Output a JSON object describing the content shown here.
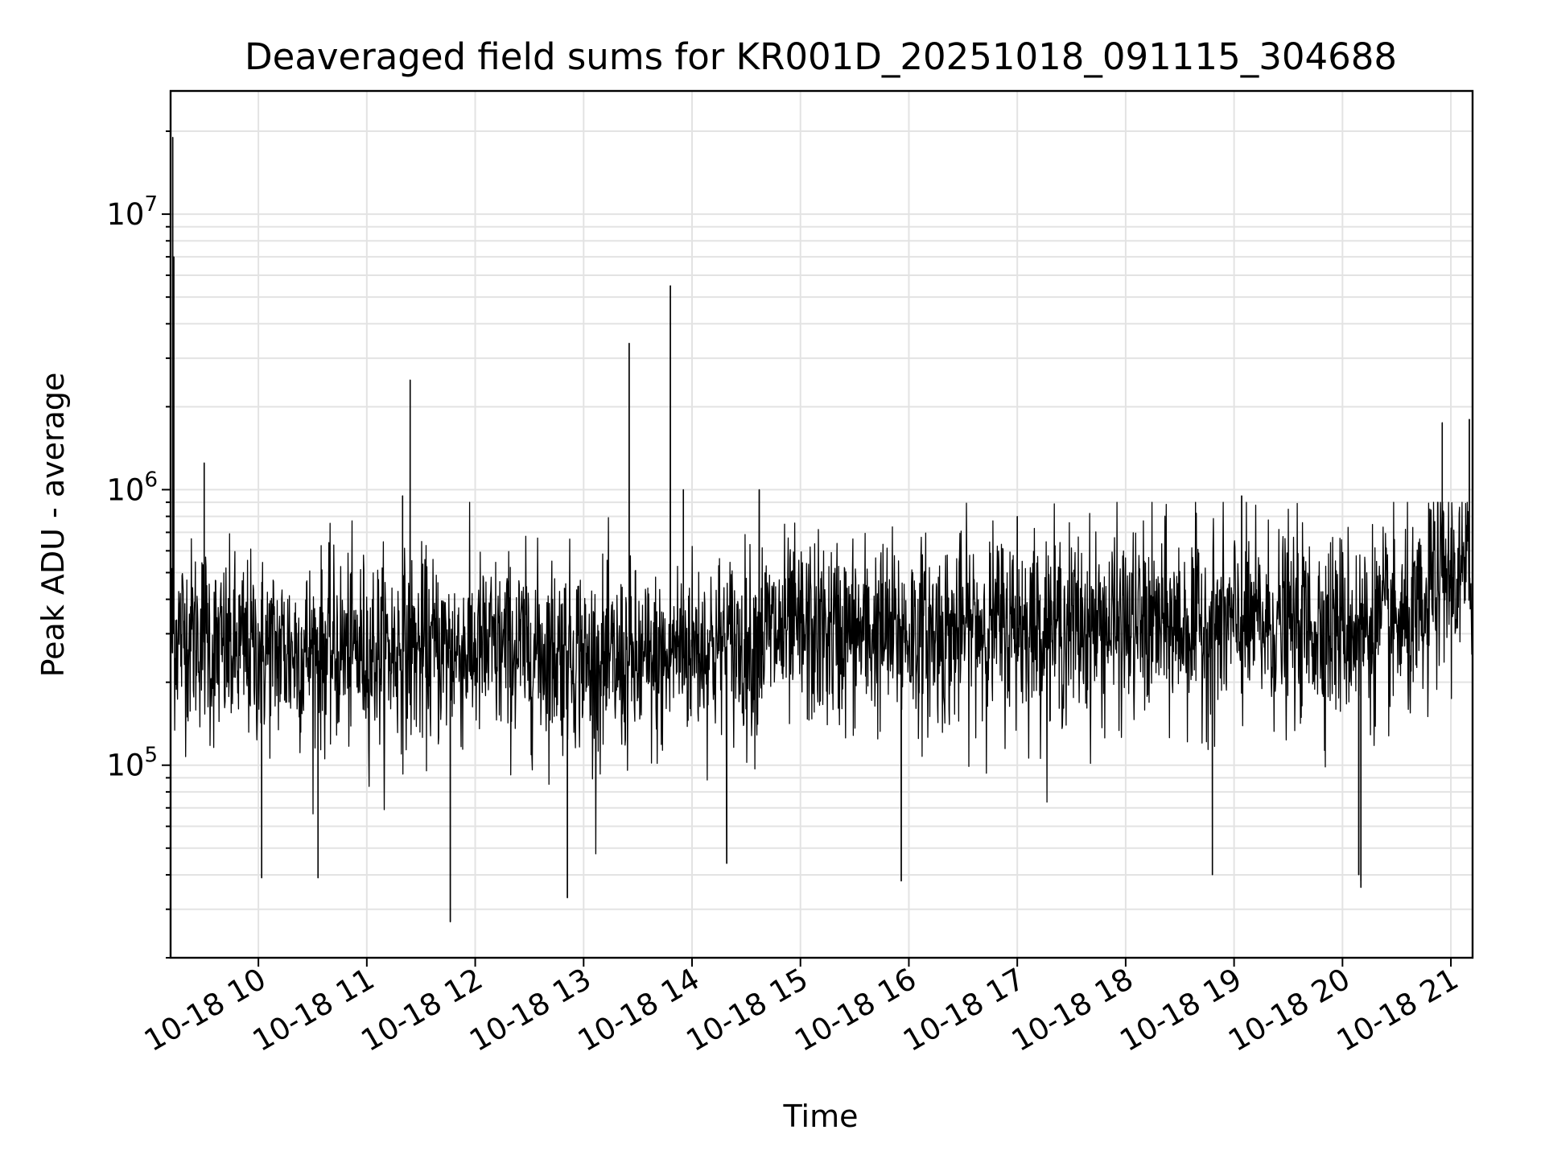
{
  "chart_data": {
    "type": "line",
    "title": "Deaveraged field sums for KR001D_20251018_091115_304688",
    "xlabel": "Time",
    "ylabel": "Peak ADU - average",
    "yscale": "log",
    "ylim": [
      20000,
      28000000
    ],
    "xlim_hours": [
      9.19,
      21.2
    ],
    "grid": true,
    "x_tick_labels": [
      "10-18 10",
      "10-18 11",
      "10-18 12",
      "10-18 13",
      "10-18 14",
      "10-18 15",
      "10-18 16",
      "10-18 17",
      "10-18 18",
      "10-18 19",
      "10-18 20",
      "10-18 21"
    ],
    "x_tick_hours": [
      10,
      11,
      12,
      13,
      14,
      15,
      16,
      17,
      18,
      19,
      20,
      21
    ],
    "y_ticks": [
      {
        "base": "10",
        "exp": "5",
        "value": 100000
      },
      {
        "base": "10",
        "exp": "6",
        "value": 1000000
      },
      {
        "base": "10",
        "exp": "7",
        "value": 10000000
      }
    ],
    "line_color": "#000000",
    "grid_color": "#e3e3e3",
    "baseline_segments": [
      {
        "start_hour": 9.19,
        "end_hour": 9.55,
        "median": 300000
      },
      {
        "start_hour": 9.55,
        "end_hour": 13.0,
        "median": 260000
      },
      {
        "start_hour": 13.0,
        "end_hour": 13.8,
        "median": 230000
      },
      {
        "start_hour": 13.8,
        "end_hour": 14.6,
        "median": 270000
      },
      {
        "start_hour": 14.6,
        "end_hour": 16.5,
        "median": 300000
      },
      {
        "start_hour": 16.5,
        "end_hour": 20.8,
        "median": 320000
      },
      {
        "start_hour": 20.8,
        "end_hour": 21.2,
        "median": 480000
      }
    ],
    "spikes": [
      {
        "hour": 9.21,
        "value": 19000000
      },
      {
        "hour": 9.22,
        "value": 7000000
      },
      {
        "hour": 9.5,
        "value": 1250000
      },
      {
        "hour": 11.4,
        "value": 2500000
      },
      {
        "hour": 11.33,
        "value": 950000
      },
      {
        "hour": 12.85,
        "value": 33000
      },
      {
        "hour": 11.77,
        "value": 27000
      },
      {
        "hour": 10.03,
        "value": 39000
      },
      {
        "hour": 10.55,
        "value": 39000
      },
      {
        "hour": 13.42,
        "value": 3400000
      },
      {
        "hour": 13.8,
        "value": 5500000
      },
      {
        "hour": 13.92,
        "value": 1000000
      },
      {
        "hour": 14.62,
        "value": 1000000
      },
      {
        "hour": 14.32,
        "value": 44000
      },
      {
        "hour": 15.93,
        "value": 38000
      },
      {
        "hour": 17.0,
        "value": 800000
      },
      {
        "hour": 18.8,
        "value": 40000
      },
      {
        "hour": 19.07,
        "value": 950000
      },
      {
        "hour": 20.15,
        "value": 40000
      },
      {
        "hour": 20.17,
        "value": 38000
      },
      {
        "hour": 20.17,
        "value": 36000
      },
      {
        "hour": 20.92,
        "value": 1750000
      },
      {
        "hour": 21.17,
        "value": 1800000
      }
    ]
  }
}
